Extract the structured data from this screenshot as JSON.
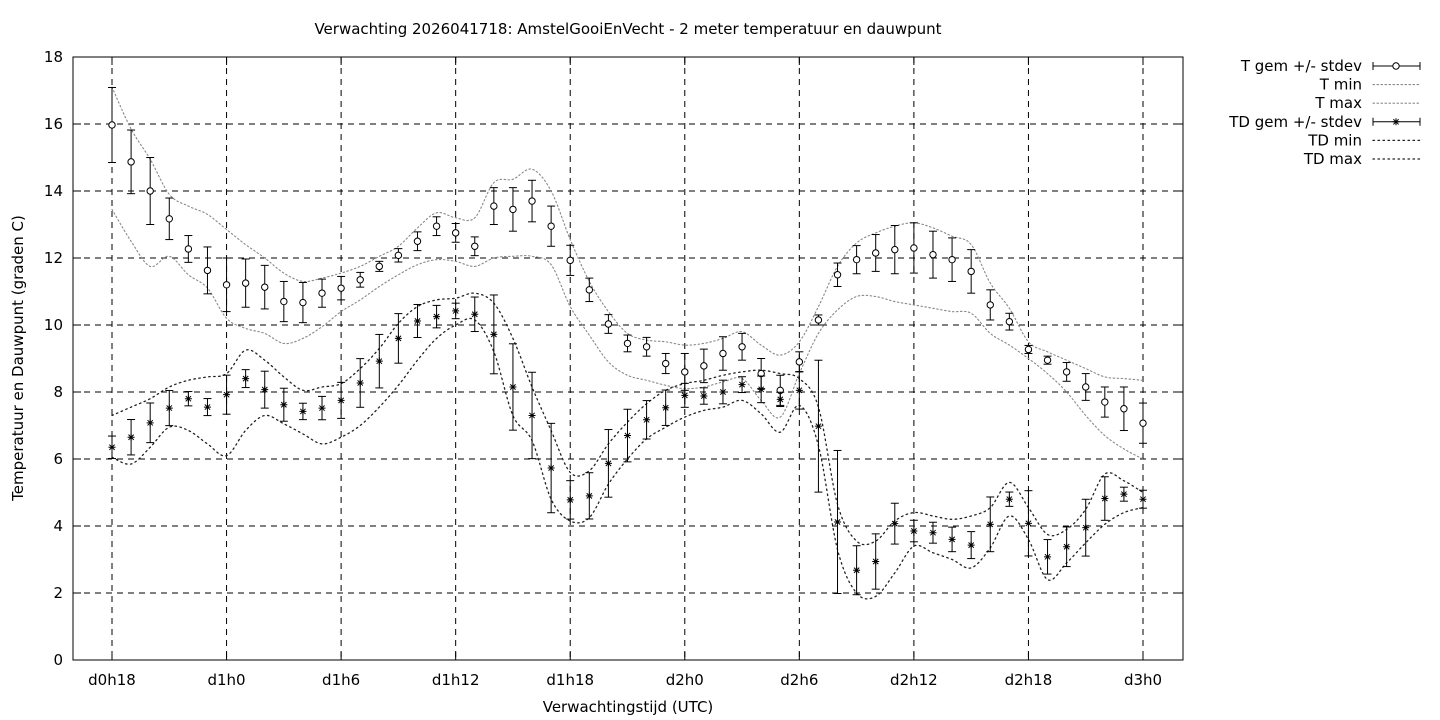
{
  "chart_data": {
    "type": "line",
    "title": "Verwachting 2026041718: AmstelGooiEnVecht - 2 meter temperatuur en dauwpunt",
    "xlabel": "Verwachtingstijd (UTC)",
    "ylabel": "Temperatuur en Dauwpunt (graden C)",
    "ylim": [
      0,
      18
    ],
    "xlim": [
      18,
      75
    ],
    "grid": true,
    "legend_position": "outside-top-right",
    "y_ticks": [
      "0",
      "2",
      "4",
      "6",
      "8",
      "10",
      "12",
      "14",
      "16",
      "18"
    ],
    "x_ticks": [
      {
        "x": 18,
        "label": "d0h18"
      },
      {
        "x": 24,
        "label": "d1h0"
      },
      {
        "x": 30,
        "label": "d1h6"
      },
      {
        "x": 36,
        "label": "d1h12"
      },
      {
        "x": 42,
        "label": "d1h18"
      },
      {
        "x": 48,
        "label": "d2h0"
      },
      {
        "x": 54,
        "label": "d2h6"
      },
      {
        "x": 60,
        "label": "d2h12"
      },
      {
        "x": 66,
        "label": "d2h18"
      },
      {
        "x": 72,
        "label": "d3h0"
      }
    ],
    "legend": [
      "T gem +/- stdev",
      "T min",
      "T max",
      "TD gem +/- stdev",
      "TD min",
      "TD max"
    ],
    "x_hours": [
      18,
      19,
      20,
      21,
      22,
      23,
      24,
      25,
      26,
      27,
      28,
      29,
      30,
      31,
      32,
      33,
      34,
      35,
      36,
      37,
      38,
      39,
      40,
      41,
      42,
      43,
      44,
      45,
      46,
      47,
      48,
      49,
      50,
      51,
      52,
      53,
      54,
      55,
      56,
      57,
      58,
      59,
      60,
      61,
      62,
      63,
      64,
      65,
      66,
      67,
      68,
      69,
      70,
      71,
      72
    ],
    "series": [
      {
        "name": "T gem +/- stdev",
        "marker": "circle",
        "values": [
          15.97,
          14.87,
          14.0,
          13.17,
          12.27,
          11.63,
          11.2,
          11.25,
          11.13,
          10.7,
          10.67,
          10.95,
          11.1,
          11.35,
          11.75,
          12.08,
          12.5,
          12.95,
          12.75,
          12.35,
          13.55,
          13.45,
          13.7,
          12.95,
          11.93,
          11.05,
          10.03,
          9.45,
          9.35,
          8.85,
          8.6,
          8.78,
          9.15,
          9.35,
          8.55,
          8.05,
          8.9,
          10.15,
          11.5,
          11.95,
          12.15,
          12.25,
          12.3,
          12.1,
          11.95,
          11.6,
          10.6,
          10.1,
          9.27,
          8.95,
          8.6,
          8.15,
          7.7,
          7.5,
          7.07
        ],
        "stdev": [
          1.12,
          0.95,
          1.0,
          0.62,
          0.4,
          0.7,
          0.8,
          0.72,
          0.65,
          0.6,
          0.6,
          0.42,
          0.35,
          0.22,
          0.15,
          0.2,
          0.28,
          0.28,
          0.28,
          0.28,
          0.55,
          0.65,
          0.62,
          0.6,
          0.45,
          0.35,
          0.28,
          0.25,
          0.28,
          0.3,
          0.55,
          0.5,
          0.5,
          0.4,
          0.45,
          0.45,
          0.3,
          0.15,
          0.35,
          0.42,
          0.55,
          0.72,
          0.75,
          0.7,
          0.65,
          0.65,
          0.45,
          0.25,
          0.12,
          0.12,
          0.28,
          0.4,
          0.45,
          0.65,
          0.6
        ]
      },
      {
        "name": "T min",
        "style": "dotted",
        "values": [
          13.45,
          12.5,
          11.75,
          12.05,
          11.5,
          11.1,
          10.2,
          9.9,
          9.75,
          9.45,
          9.6,
          9.95,
          10.4,
          10.75,
          11.15,
          11.5,
          11.8,
          11.95,
          11.9,
          11.75,
          12.0,
          12.05,
          12.05,
          11.8,
          10.55,
          9.7,
          8.9,
          8.5,
          8.35,
          8.2,
          8.1,
          8.15,
          8.3,
          8.4,
          7.75,
          7.25,
          8.55,
          9.75,
          10.45,
          10.85,
          10.85,
          10.7,
          10.6,
          10.5,
          10.4,
          10.35,
          9.75,
          9.4,
          9.0,
          8.55,
          8.0,
          7.3,
          6.7,
          6.3,
          6.0
        ]
      },
      {
        "name": "T max",
        "style": "dotted",
        "values": [
          17.1,
          15.85,
          14.95,
          13.9,
          13.55,
          13.3,
          12.85,
          12.4,
          12.0,
          11.55,
          11.3,
          11.4,
          11.55,
          11.75,
          12.05,
          12.35,
          12.9,
          13.35,
          13.2,
          13.2,
          14.25,
          14.35,
          14.65,
          14.0,
          12.55,
          11.3,
          10.4,
          9.75,
          9.55,
          9.5,
          9.4,
          9.45,
          9.6,
          9.8,
          9.4,
          9.1,
          9.5,
          10.55,
          11.75,
          12.45,
          12.75,
          12.95,
          13.05,
          12.9,
          12.65,
          12.4,
          11.25,
          10.5,
          9.5,
          9.2,
          8.95,
          8.7,
          8.45,
          8.4,
          8.35
        ]
      },
      {
        "name": "TD gem +/- stdev",
        "marker": "star",
        "values": [
          6.35,
          6.65,
          7.08,
          7.52,
          7.8,
          7.55,
          7.92,
          8.4,
          8.07,
          7.62,
          7.42,
          7.52,
          7.75,
          8.27,
          8.92,
          9.6,
          10.12,
          10.25,
          10.42,
          10.32,
          9.72,
          8.15,
          7.3,
          5.73,
          4.78,
          4.9,
          5.87,
          6.7,
          7.17,
          7.53,
          7.9,
          7.88,
          8.0,
          8.22,
          8.08,
          7.78,
          8.05,
          6.98,
          4.12,
          2.68,
          2.94,
          4.07,
          3.85,
          3.8,
          3.6,
          3.43,
          4.05,
          4.8,
          4.08,
          3.08,
          3.38,
          3.95,
          4.82,
          4.95,
          4.8
        ]
      },
      {
        "name": "TD min",
        "style": "dotted",
        "values": [
          6.05,
          5.85,
          6.35,
          6.95,
          6.85,
          6.45,
          6.1,
          6.85,
          7.3,
          7.05,
          6.75,
          6.45,
          6.65,
          7.0,
          7.55,
          8.2,
          8.95,
          9.6,
          10.0,
          10.15,
          9.2,
          7.3,
          6.55,
          4.8,
          4.15,
          4.25,
          5.25,
          6.0,
          6.6,
          6.95,
          7.25,
          7.45,
          7.55,
          7.75,
          7.35,
          6.8,
          7.6,
          6.4,
          3.3,
          2.0,
          1.9,
          2.6,
          3.4,
          3.2,
          3.0,
          2.75,
          3.35,
          4.3,
          3.6,
          2.4,
          2.9,
          3.5,
          4.05,
          4.4,
          4.55
        ]
      },
      {
        "name": "TD max",
        "style": "dotted",
        "values": [
          7.3,
          7.55,
          7.8,
          8.15,
          8.35,
          8.45,
          8.55,
          9.25,
          8.95,
          8.45,
          8.05,
          8.15,
          8.25,
          8.7,
          9.3,
          10.05,
          10.55,
          10.75,
          10.8,
          10.95,
          10.65,
          9.6,
          8.15,
          6.85,
          5.6,
          5.65,
          6.45,
          7.1,
          7.65,
          8.05,
          8.25,
          8.35,
          8.5,
          8.6,
          8.65,
          8.55,
          8.4,
          7.55,
          4.65,
          3.55,
          3.55,
          4.15,
          4.4,
          4.3,
          4.2,
          4.3,
          4.55,
          5.3,
          4.55,
          3.75,
          3.9,
          4.5,
          5.55,
          5.35,
          5.0
        ]
      }
    ]
  }
}
